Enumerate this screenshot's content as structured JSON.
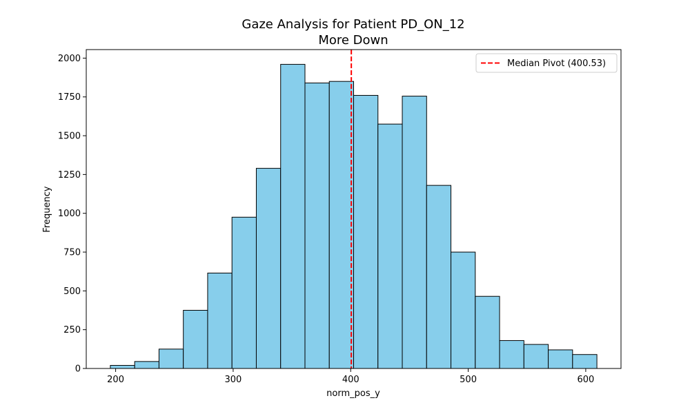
{
  "chart_data": {
    "type": "bar",
    "title": "Gaze Analysis for Patient PD_ON_12",
    "subtitle": "More Down",
    "xlabel": "norm_pos_y",
    "ylabel": "Frequency",
    "xlim": [
      175,
      630
    ],
    "ylim": [
      0,
      2055
    ],
    "x_ticks": [
      200,
      300,
      400,
      500,
      600
    ],
    "y_ticks": [
      0,
      250,
      500,
      750,
      1000,
      1250,
      1500,
      1750,
      2000
    ],
    "bin_edges": [
      195.5,
      216.2,
      236.9,
      257.6,
      278.3,
      299.0,
      319.7,
      340.4,
      361.1,
      381.8,
      402.5,
      423.2,
      443.9,
      464.6,
      485.3,
      506.0,
      526.7,
      547.4,
      568.1,
      588.8,
      609.5
    ],
    "values": [
      20,
      45,
      125,
      375,
      615,
      975,
      1290,
      1960,
      1840,
      1850,
      1760,
      1575,
      1755,
      1180,
      750,
      465,
      180,
      155,
      120,
      90
    ],
    "bar_color": "#87ceeb",
    "bar_edge_color": "#000000",
    "reference_line": {
      "x": 400.53,
      "color": "#ff0000",
      "style": "dashed",
      "label": "Median Pivot (400.53)"
    },
    "grid": false,
    "legend_position": "top-right"
  }
}
